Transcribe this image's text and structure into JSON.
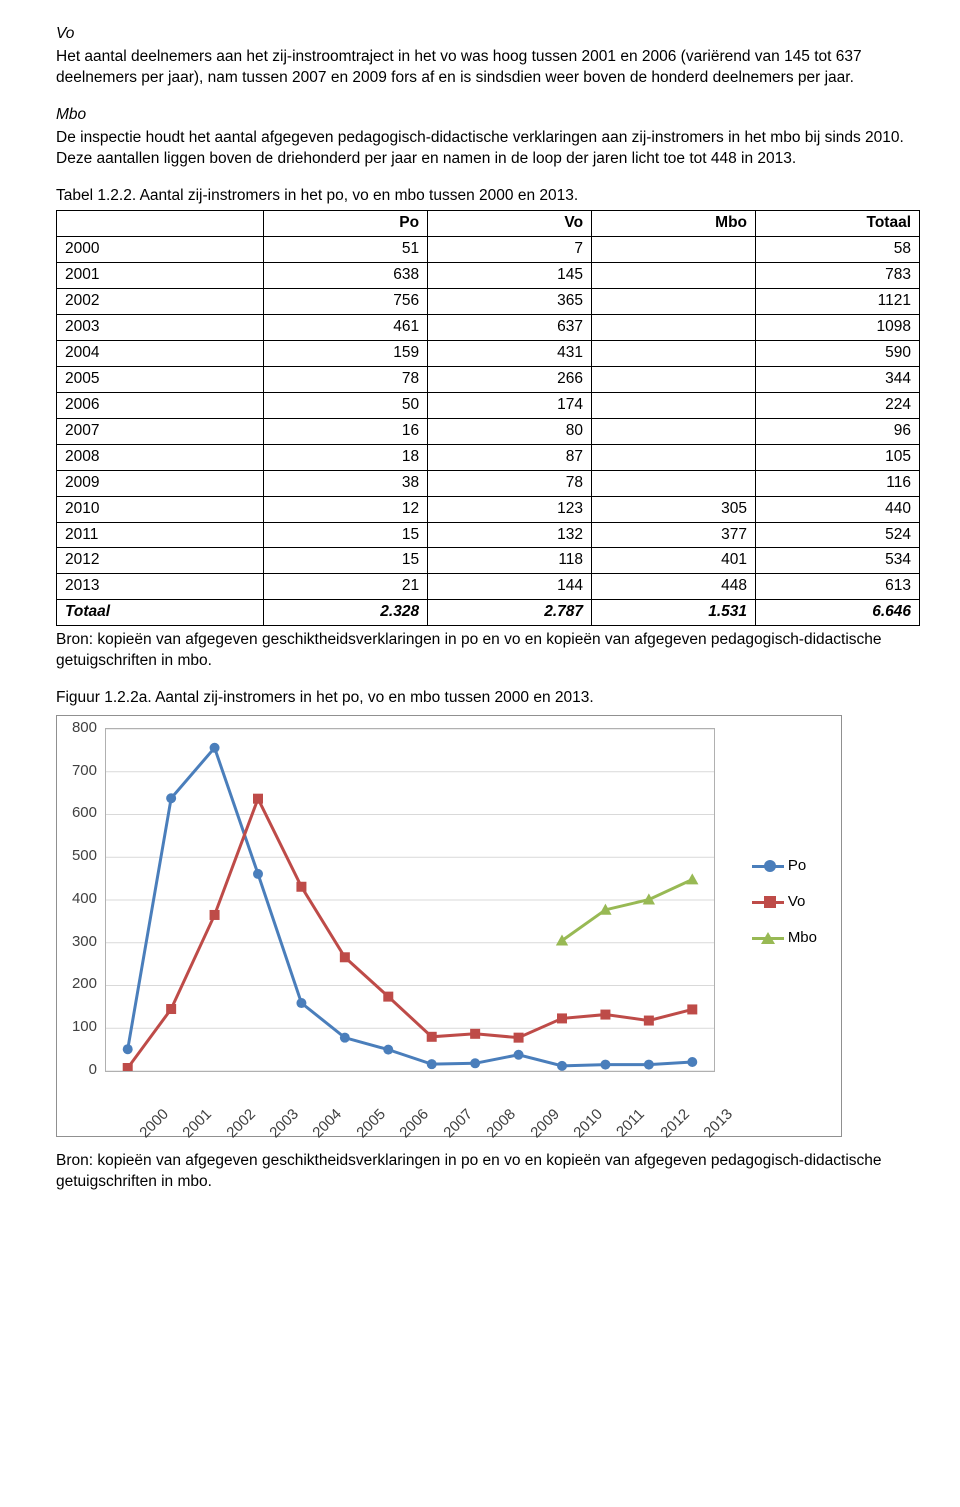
{
  "heading_vo": "Vo",
  "para_vo": "Het aantal deelnemers aan het zij-instroomtraject in het vo was hoog tussen 2001 en 2006 (variërend van 145 tot 637 deelnemers per jaar), nam tussen 2007 en 2009 fors af en is sindsdien weer boven de honderd deelnemers per jaar.",
  "heading_mbo": "Mbo",
  "para_mbo": "De inspectie houdt het aantal afgegeven pedagogisch-didactische verklaringen aan zij-instromers in het mbo bij sinds 2010. Deze aantallen liggen boven de driehonderd per jaar en namen in de loop der jaren licht toe tot 448 in 2013.",
  "table_caption": "Tabel 1.2.2. Aantal zij-instromers in het po, vo en mbo tussen 2000 en 2013.",
  "table": {
    "columns": [
      "",
      "Po",
      "Vo",
      "Mbo",
      "Totaal"
    ],
    "rows": [
      [
        "2000",
        "51",
        "7",
        "",
        "58"
      ],
      [
        "2001",
        "638",
        "145",
        "",
        "783"
      ],
      [
        "2002",
        "756",
        "365",
        "",
        "1121"
      ],
      [
        "2003",
        "461",
        "637",
        "",
        "1098"
      ],
      [
        "2004",
        "159",
        "431",
        "",
        "590"
      ],
      [
        "2005",
        "78",
        "266",
        "",
        "344"
      ],
      [
        "2006",
        "50",
        "174",
        "",
        "224"
      ],
      [
        "2007",
        "16",
        "80",
        "",
        "96"
      ],
      [
        "2008",
        "18",
        "87",
        "",
        "105"
      ],
      [
        "2009",
        "38",
        "78",
        "",
        "116"
      ],
      [
        "2010",
        "12",
        "123",
        "305",
        "440"
      ],
      [
        "2011",
        "15",
        "132",
        "377",
        "524"
      ],
      [
        "2012",
        "15",
        "118",
        "401",
        "534"
      ],
      [
        "2013",
        "21",
        "144",
        "448",
        "613"
      ]
    ],
    "footer": [
      "Totaal",
      "2.328",
      "2.787",
      "1.531",
      "6.646"
    ]
  },
  "table_source": "Bron: kopieën van afgegeven geschiktheidsverklaringen in po en vo en kopieën van afgegeven pedagogisch-didactische getuigschriften in mbo.",
  "figure_caption": "Figuur 1.2.2a. Aantal zij-instromers in het po, vo en mbo tussen 2000 en 2013.",
  "chart": {
    "type": "line",
    "categories": [
      "2000",
      "2001",
      "2002",
      "2003",
      "2004",
      "2005",
      "2006",
      "2007",
      "2008",
      "2009",
      "2010",
      "2011",
      "2012",
      "2013"
    ],
    "series": [
      {
        "name": "Po",
        "color": "#4a7ebb",
        "marker": "circle",
        "values": [
          51,
          638,
          756,
          461,
          159,
          78,
          50,
          16,
          18,
          38,
          12,
          15,
          15,
          21
        ]
      },
      {
        "name": "Vo",
        "color": "#be4b48",
        "marker": "square",
        "values": [
          7,
          145,
          365,
          637,
          431,
          266,
          174,
          80,
          87,
          78,
          123,
          132,
          118,
          144
        ]
      },
      {
        "name": "Mbo",
        "color": "#98b954",
        "marker": "triangle",
        "values": [
          null,
          null,
          null,
          null,
          null,
          null,
          null,
          null,
          null,
          null,
          305,
          377,
          401,
          448
        ]
      }
    ],
    "ylim": [
      0,
      800
    ],
    "ytick_step": 100,
    "line_width": 3,
    "marker_size": 8,
    "background_color": "#ffffff",
    "grid_color": "#d9d9d9",
    "axis_color": "#b0b0b0",
    "label_fontsize": 15,
    "legend_position": "right"
  },
  "chart_source": "Bron: kopieën van afgegeven geschiktheidsverklaringen in po en vo en kopieën van afgegeven pedagogisch-didactische getuigschriften in mbo."
}
